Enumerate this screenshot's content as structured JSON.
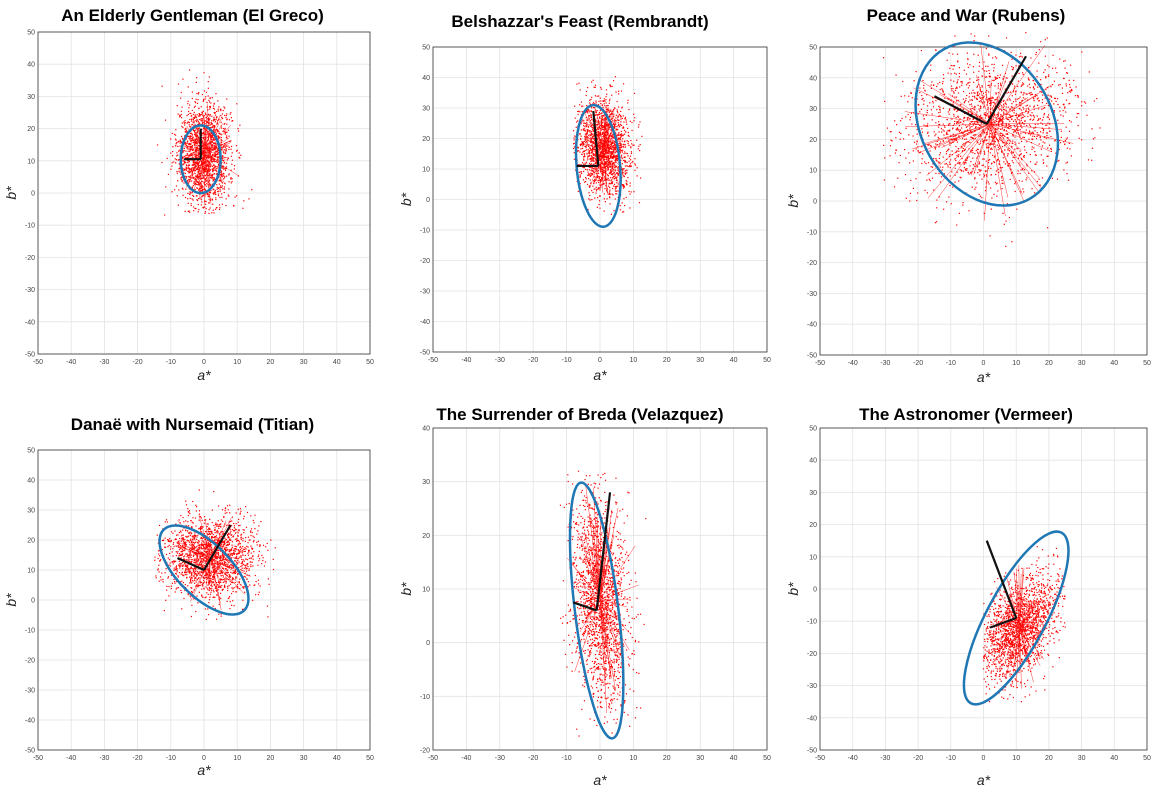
{
  "chart_data": [
    {
      "type": "scatter",
      "title": "An Elderly Gentleman (El Greco)",
      "xlabel": "a*",
      "ylabel": "b*",
      "xlim": [
        -50,
        50
      ],
      "ylim": [
        -50,
        50
      ],
      "xticks": [
        -50,
        -40,
        -30,
        -20,
        -10,
        0,
        10,
        20,
        30,
        40,
        50
      ],
      "yticks": [
        -50,
        -40,
        -30,
        -20,
        -10,
        0,
        10,
        20,
        30,
        40,
        50
      ],
      "grid": true,
      "point_color": "#ff0000",
      "ellipse_color": "#1f77b4",
      "point_cloud": {
        "center": [
          0,
          12
        ],
        "spread": [
          4,
          8
        ],
        "extent_x": [
          -14,
          16
        ],
        "extent_y": [
          -7,
          42
        ]
      },
      "ellipse": {
        "center": [
          -1,
          10.5
        ],
        "semi_axes": [
          6,
          10.5
        ],
        "angle_deg": 0
      },
      "principal_axes": {
        "origin": [
          -1,
          10.5
        ],
        "ends": [
          [
            -6,
            10.5
          ],
          [
            -1,
            20
          ]
        ]
      }
    },
    {
      "type": "scatter",
      "title": "Belshazzar's Feast (Rembrandt)",
      "xlabel": "a*",
      "ylabel": "b*",
      "xlim": [
        -50,
        50
      ],
      "ylim": [
        -50,
        50
      ],
      "xticks": [
        -50,
        -40,
        -30,
        -20,
        -10,
        0,
        10,
        20,
        30,
        40,
        50
      ],
      "yticks": [
        -50,
        -40,
        -30,
        -20,
        -10,
        0,
        10,
        20,
        30,
        40,
        50
      ],
      "grid": true,
      "point_color": "#ff0000",
      "ellipse_color": "#1f77b4",
      "point_cloud": {
        "center": [
          1,
          17
        ],
        "spread": [
          4,
          8
        ],
        "extent_x": [
          -8,
          15
        ],
        "extent_y": [
          -5,
          41
        ]
      },
      "ellipse": {
        "center": [
          -0.5,
          11
        ],
        "semi_axes": [
          6.5,
          20
        ],
        "angle_deg": -5
      },
      "principal_axes": {
        "origin": [
          -0.5,
          11
        ],
        "ends": [
          [
            -7,
            11
          ],
          [
            -2,
            29
          ]
        ]
      }
    },
    {
      "type": "scatter",
      "title": "Peace and War (Rubens)",
      "xlabel": "a*",
      "ylabel": "b*",
      "xlim": [
        -50,
        50
      ],
      "ylim": [
        -50,
        50
      ],
      "xticks": [
        -50,
        -40,
        -30,
        -20,
        -10,
        0,
        10,
        20,
        30,
        40,
        50
      ],
      "yticks": [
        -50,
        -40,
        -30,
        -20,
        -10,
        0,
        10,
        20,
        30,
        40,
        50
      ],
      "grid": true,
      "point_color": "#ff0000",
      "ellipse_color": "#1f77b4",
      "point_cloud": {
        "center": [
          2,
          25
        ],
        "spread": [
          13,
          11
        ],
        "extent_x": [
          -32,
          37
        ],
        "extent_y": [
          -15,
          55
        ]
      },
      "ellipse": {
        "center": [
          1,
          25
        ],
        "semi_axes": [
          20,
          28
        ],
        "angle_deg": -30
      },
      "principal_axes": {
        "origin": [
          1,
          25
        ],
        "ends": [
          [
            -15,
            34
          ],
          [
            13,
            47
          ]
        ]
      }
    },
    {
      "type": "scatter",
      "title": "Danaë with Nursemaid  (Titian)",
      "xlabel": "a*",
      "ylabel": "b*",
      "xlim": [
        -50,
        50
      ],
      "ylim": [
        -50,
        50
      ],
      "xticks": [
        -50,
        -40,
        -30,
        -20,
        -10,
        0,
        10,
        20,
        30,
        40,
        50
      ],
      "yticks": [
        -50,
        -40,
        -30,
        -20,
        -10,
        0,
        10,
        20,
        30,
        40,
        50
      ],
      "grid": true,
      "point_color": "#ff0000",
      "ellipse_color": "#1f77b4",
      "point_cloud": {
        "center": [
          2,
          14
        ],
        "spread": [
          7,
          7
        ],
        "extent_x": [
          -15,
          22
        ],
        "extent_y": [
          -7,
          40
        ]
      },
      "ellipse": {
        "center": [
          0,
          10
        ],
        "semi_axes": [
          8,
          19
        ],
        "angle_deg": -45
      },
      "principal_axes": {
        "origin": [
          0,
          10
        ],
        "ends": [
          [
            -8,
            14
          ],
          [
            8,
            25
          ]
        ]
      }
    },
    {
      "type": "scatter",
      "title": "The Surrender of Breda (Velazquez)",
      "xlabel": "a*",
      "ylabel": "b*",
      "xlim": [
        -50,
        50
      ],
      "ylim": [
        -20,
        40
      ],
      "xticks": [
        -50,
        -40,
        -30,
        -20,
        -10,
        0,
        10,
        20,
        30,
        40,
        50
      ],
      "yticks": [
        -20,
        -10,
        0,
        10,
        20,
        30,
        40
      ],
      "grid": true,
      "point_color": "#ff0000",
      "ellipse_color": "#1f77b4",
      "point_cloud": {
        "center": [
          0,
          8
        ],
        "spread": [
          4,
          10
        ],
        "extent_x": [
          -14,
          14
        ],
        "extent_y": [
          -19,
          32
        ]
      },
      "ellipse": {
        "center": [
          -1,
          6
        ],
        "semi_axes": [
          6.5,
          24
        ],
        "angle_deg": -7
      },
      "principal_axes": {
        "origin": [
          -1,
          6
        ],
        "ends": [
          [
            -8,
            7.5
          ],
          [
            3,
            28
          ]
        ]
      }
    },
    {
      "type": "scatter",
      "title": "The Astronomer (Vermeer)",
      "xlabel": "a*",
      "ylabel": "b*",
      "xlim": [
        -50,
        50
      ],
      "ylim": [
        -50,
        50
      ],
      "xticks": [
        -50,
        -40,
        -30,
        -20,
        -10,
        0,
        10,
        20,
        30,
        40,
        50
      ],
      "yticks": [
        -50,
        -40,
        -30,
        -20,
        -10,
        0,
        10,
        20,
        30,
        40,
        50
      ],
      "grid": true,
      "point_color": "#ff0000",
      "ellipse_color": "#1f77b4",
      "point_cloud": {
        "center": [
          11,
          -12
        ],
        "spread": [
          5,
          9
        ],
        "extent_x": [
          0,
          25
        ],
        "extent_y": [
          -35,
          15
        ]
      },
      "ellipse": {
        "center": [
          10,
          -9
        ],
        "semi_axes": [
          9,
          30
        ],
        "angle_deg": 28
      },
      "principal_axes": {
        "origin": [
          10,
          -9
        ],
        "ends": [
          [
            2,
            -12
          ],
          [
            1,
            15
          ]
        ]
      }
    }
  ]
}
